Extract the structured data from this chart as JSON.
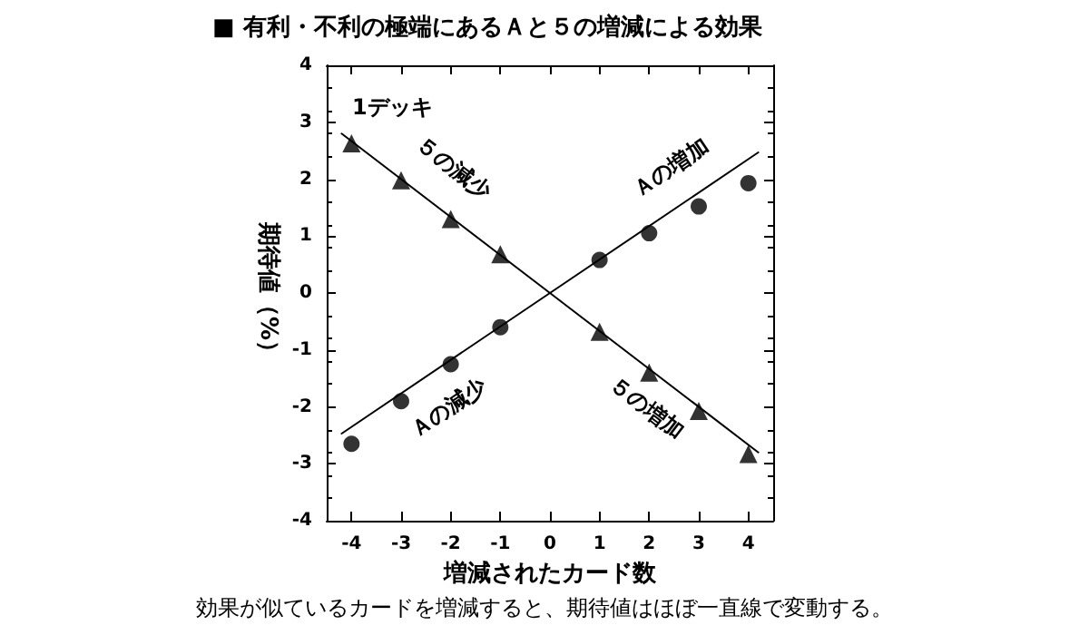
{
  "chart_data": {
    "type": "scatter",
    "title": "■ 有利・不利の極端にあるＡと５の増減による効果",
    "xlabel": "増減されたカード数",
    "ylabel": "期待値（%）",
    "x": [
      -4,
      -3,
      -2,
      -1,
      1,
      2,
      3,
      4
    ],
    "series": [
      {
        "color": "#000000",
        "marker": "circle",
        "values": [
          -2.65,
          -1.9,
          -1.25,
          -0.6,
          0.58,
          1.05,
          1.52,
          1.93
        ]
      },
      {
        "color": "#000000",
        "marker": "triangle",
        "values": [
          2.63,
          1.98,
          1.3,
          0.68,
          -0.68,
          -1.4,
          -2.07,
          -2.83
        ]
      },
      {
        "type": "line",
        "color": "#000000",
        "marker": "none",
        "line_style": "solid",
        "x": [
          -4.2,
          0,
          4.2
        ],
        "values": [
          -2.47,
          0,
          2.47
        ]
      },
      {
        "type": "line",
        "color": "#000000",
        "marker": "none",
        "line_style": "solid",
        "x": [
          -4.2,
          0,
          4.2
        ],
        "values": [
          2.8,
          0,
          -2.8
        ]
      }
    ],
    "xlim": [
      -4.5,
      4.5
    ],
    "xticks": [
      -4,
      -3,
      -2,
      -1,
      0,
      1,
      2,
      3,
      4
    ],
    "ylim": [
      -4,
      4
    ],
    "yticks": [
      -4,
      -3,
      -2,
      -1,
      0,
      1,
      2,
      3,
      4
    ],
    "grid": false,
    "annotations": [
      "1デッキ",
      "５の減少",
      "Ａの増加",
      "Ａの減少",
      "５の増加",
      "効果が似ているカードを増減すると、期待値はほぼ一直線で変動する。"
    ]
  }
}
